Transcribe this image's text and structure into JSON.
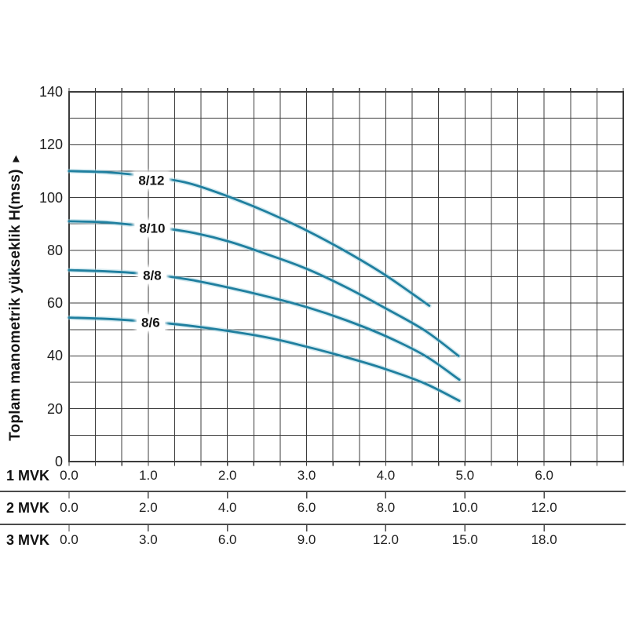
{
  "y_axis": {
    "title": "Toplam manometrik yükseklik H(mss)",
    "arrow": "▲"
  },
  "chart_data": {
    "type": "line",
    "title": "",
    "xlabel": "",
    "ylabel": "Toplam manometrik yükseklik H(mss)",
    "ylim": [
      0,
      140
    ],
    "y_major_step": 20,
    "y_minor_step": 10,
    "y_ticks": [
      0,
      20,
      40,
      60,
      80,
      100,
      120,
      140
    ],
    "xlim_1mvk": [
      0,
      7
    ],
    "grid": true,
    "legend_position": "labels-on-curves",
    "x_scales": [
      {
        "name": "1 MVK",
        "ticks": [
          "0.0",
          "1.0",
          "2.0",
          "3.0",
          "4.0",
          "5.0",
          "6.0"
        ]
      },
      {
        "name": "2 MVK",
        "ticks": [
          "0.0",
          "2.0",
          "4.0",
          "6.0",
          "8.0",
          "10.0",
          "12.0"
        ]
      },
      {
        "name": "3 MVK",
        "ticks": [
          "0.0",
          "3.0",
          "6.0",
          "9.0",
          "12.0",
          "15.0",
          "18.0"
        ]
      }
    ],
    "series": [
      {
        "name": "8/12",
        "label_at": [
          1.04,
          106.3
        ],
        "points": [
          [
            0,
            110
          ],
          [
            0.5,
            109.5
          ],
          [
            1.0,
            108
          ],
          [
            1.5,
            105.5
          ],
          [
            2.0,
            100.5
          ],
          [
            2.5,
            94.5
          ],
          [
            3.0,
            87.5
          ],
          [
            3.5,
            79.5
          ],
          [
            4.0,
            70.5
          ],
          [
            4.55,
            59
          ]
        ]
      },
      {
        "name": "8/10",
        "label_at": [
          1.05,
          88.4
        ],
        "points": [
          [
            0,
            91
          ],
          [
            0.5,
            90.5
          ],
          [
            1.0,
            89
          ],
          [
            1.5,
            87
          ],
          [
            2.0,
            83.5
          ],
          [
            2.5,
            78.5
          ],
          [
            3.0,
            73
          ],
          [
            3.5,
            66
          ],
          [
            4.0,
            58
          ],
          [
            4.5,
            49.5
          ],
          [
            4.92,
            40
          ]
        ]
      },
      {
        "name": "8/8",
        "label_at": [
          1.05,
          70.3
        ],
        "points": [
          [
            0,
            72.5
          ],
          [
            0.5,
            72
          ],
          [
            1.0,
            71
          ],
          [
            1.5,
            69
          ],
          [
            2.0,
            66
          ],
          [
            2.5,
            62.5
          ],
          [
            3.0,
            58.5
          ],
          [
            3.5,
            53.5
          ],
          [
            4.0,
            47.5
          ],
          [
            4.5,
            40
          ],
          [
            4.93,
            31
          ]
        ]
      },
      {
        "name": "8/6",
        "label_at": [
          1.03,
          52.5
        ],
        "points": [
          [
            0,
            54.5
          ],
          [
            0.5,
            54
          ],
          [
            1.0,
            53
          ],
          [
            1.5,
            51.5
          ],
          [
            2.0,
            49.5
          ],
          [
            2.5,
            47
          ],
          [
            3.0,
            43.5
          ],
          [
            3.5,
            39.5
          ],
          [
            4.0,
            35
          ],
          [
            4.5,
            29.5
          ],
          [
            4.93,
            23
          ]
        ]
      }
    ],
    "colors": {
      "curve": "#1f7f9f",
      "curve_halo": "#9fd0de",
      "grid": "#3c3c3c",
      "separator": "#4a4a4a",
      "text": "#1c1c1c"
    }
  }
}
